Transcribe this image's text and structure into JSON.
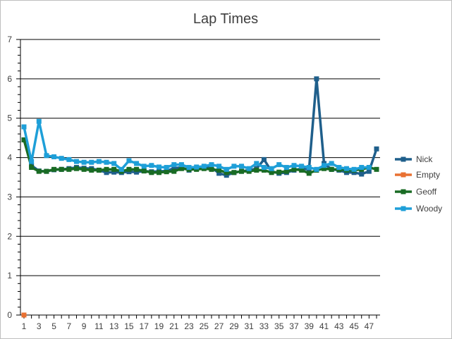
{
  "chart_data": {
    "type": "line",
    "title": "Lap Times",
    "xlabel": "",
    "ylabel": "",
    "ylim": [
      0,
      7
    ],
    "yticks": [
      0,
      1,
      2,
      3,
      4,
      5,
      6,
      7
    ],
    "xlim": [
      1,
      48
    ],
    "xtick_labels": [
      1,
      3,
      5,
      7,
      9,
      11,
      13,
      15,
      17,
      19,
      21,
      23,
      25,
      27,
      29,
      31,
      33,
      35,
      37,
      39,
      41,
      43,
      45,
      47
    ],
    "grid": "horizontal",
    "legend_position": "right",
    "series": [
      {
        "name": "Nick",
        "color": "#1f5f8b",
        "x": [
          1,
          2,
          3,
          4,
          5,
          6,
          7,
          8,
          9,
          10,
          11,
          12,
          13,
          14,
          15,
          16,
          17,
          18,
          19,
          20,
          21,
          22,
          23,
          24,
          25,
          26,
          27,
          28,
          29,
          30,
          31,
          32,
          33,
          34,
          35,
          36,
          37,
          38,
          39,
          40,
          41,
          42,
          43,
          44,
          45,
          46,
          47,
          48
        ],
        "values": [
          4.45,
          3.8,
          3.66,
          3.65,
          3.69,
          3.7,
          3.72,
          3.75,
          3.73,
          3.72,
          3.68,
          3.62,
          3.63,
          3.62,
          3.64,
          3.63,
          3.66,
          3.64,
          3.65,
          3.66,
          3.73,
          3.75,
          3.68,
          3.72,
          3.74,
          3.75,
          3.6,
          3.55,
          3.62,
          3.65,
          3.68,
          3.72,
          3.95,
          3.65,
          3.6,
          3.62,
          3.68,
          3.72,
          3.7,
          6.0,
          3.85,
          3.7,
          3.68,
          3.62,
          3.62,
          3.58,
          3.65,
          4.22
        ]
      },
      {
        "name": "Empty",
        "color": "#e97132",
        "x": [
          1
        ],
        "values": [
          0
        ]
      },
      {
        "name": "Geoff",
        "color": "#196b24",
        "x": [
          1,
          2,
          3,
          4,
          5,
          6,
          7,
          8,
          9,
          10,
          11,
          12,
          13,
          14,
          15,
          16,
          17,
          18,
          19,
          20,
          21,
          22,
          23,
          24,
          25,
          26,
          27,
          28,
          29,
          30,
          31,
          32,
          33,
          34,
          35,
          36,
          37,
          38,
          39,
          40,
          41,
          42,
          43,
          44,
          45,
          46,
          47,
          48
        ],
        "values": [
          4.45,
          3.75,
          3.65,
          3.65,
          3.7,
          3.7,
          3.7,
          3.72,
          3.7,
          3.68,
          3.68,
          3.7,
          3.7,
          3.65,
          3.7,
          3.7,
          3.66,
          3.62,
          3.62,
          3.64,
          3.65,
          3.72,
          3.7,
          3.7,
          3.72,
          3.7,
          3.68,
          3.62,
          3.62,
          3.65,
          3.65,
          3.68,
          3.68,
          3.62,
          3.63,
          3.65,
          3.7,
          3.68,
          3.6,
          3.68,
          3.72,
          3.7,
          3.7,
          3.68,
          3.68,
          3.7,
          3.75,
          3.7
        ]
      },
      {
        "name": "Woody",
        "color": "#1e9fd8",
        "x": [
          1,
          2,
          3,
          4,
          5,
          6,
          7,
          8,
          9,
          10,
          11,
          12,
          13,
          14,
          15,
          16,
          17,
          18,
          19,
          20,
          21,
          22,
          23,
          24,
          25,
          26,
          27,
          28,
          29,
          30,
          31,
          32,
          33,
          34,
          35,
          36,
          37,
          38,
          39,
          40,
          41,
          42,
          43,
          44,
          45,
          46,
          47
        ],
        "values": [
          4.78,
          3.9,
          4.92,
          4.05,
          4.02,
          3.98,
          3.95,
          3.9,
          3.88,
          3.88,
          3.9,
          3.88,
          3.85,
          3.7,
          3.92,
          3.85,
          3.78,
          3.8,
          3.76,
          3.75,
          3.82,
          3.82,
          3.75,
          3.76,
          3.78,
          3.82,
          3.78,
          3.7,
          3.78,
          3.78,
          3.72,
          3.85,
          3.75,
          3.72,
          3.82,
          3.75,
          3.8,
          3.78,
          3.75,
          3.7,
          3.8,
          3.85,
          3.75,
          3.72,
          3.7,
          3.75,
          3.75
        ]
      }
    ]
  }
}
